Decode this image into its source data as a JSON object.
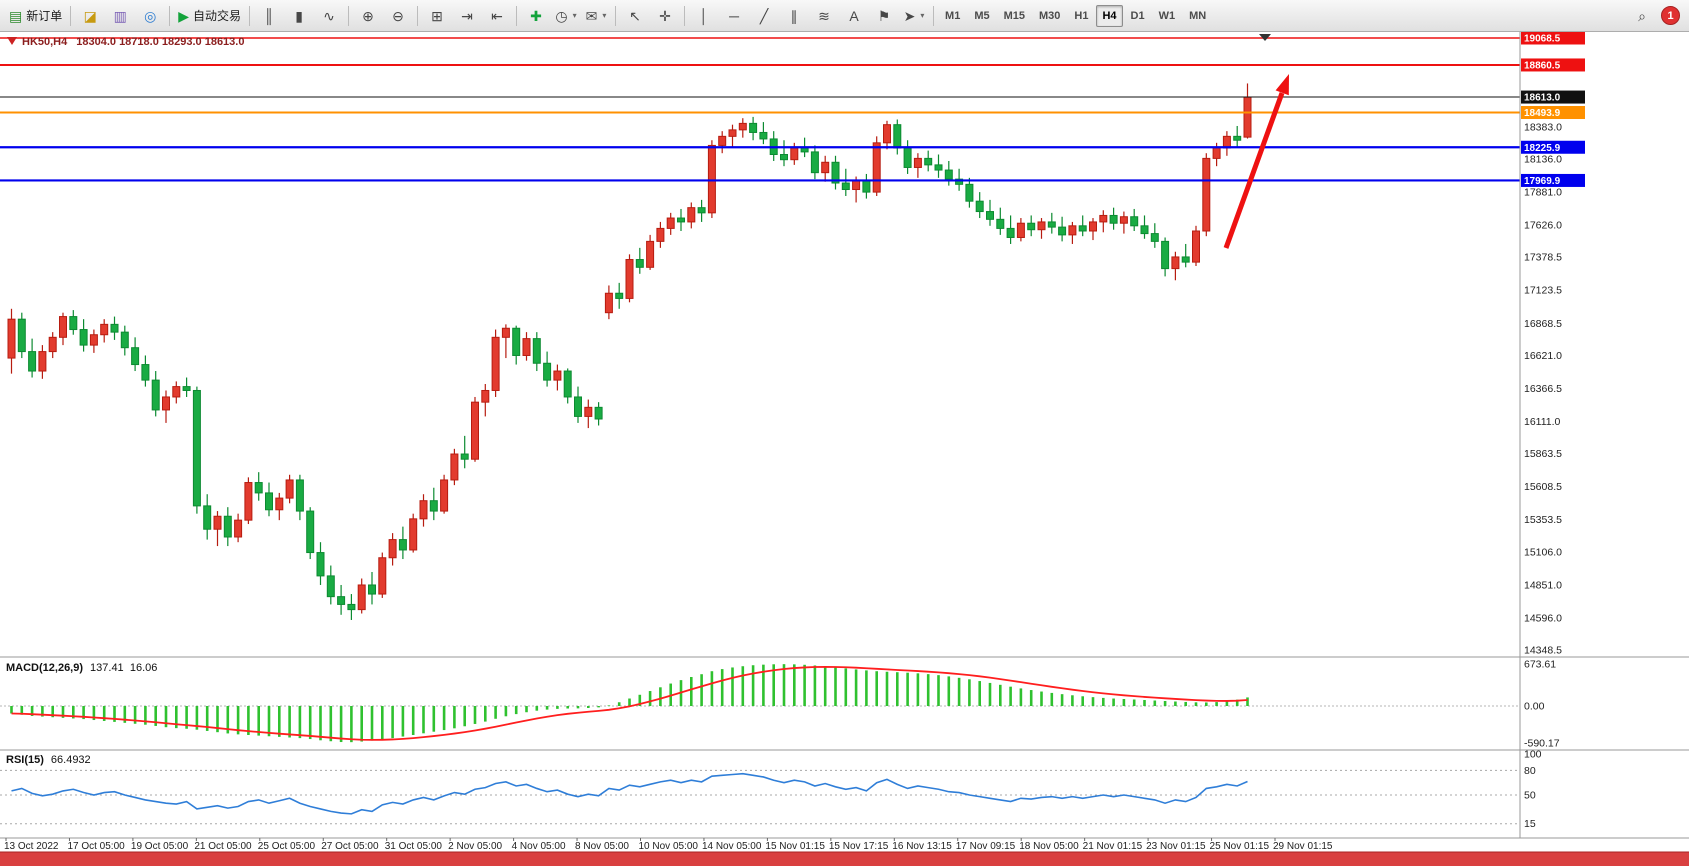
{
  "toolbar": {
    "items": [
      {
        "type": "button",
        "name": "new-order-button",
        "glyph": "▤",
        "glyph_color": "#2e8b2e",
        "label": "新订单"
      },
      {
        "type": "sep"
      },
      {
        "type": "button",
        "name": "new-chart-button",
        "glyph": "◪",
        "glyph_color": "#c79a10"
      },
      {
        "type": "button",
        "name": "profiles-button",
        "glyph": "▥",
        "glyph_color": "#7a5fb5"
      },
      {
        "type": "button",
        "name": "navigator-button",
        "glyph": "◎",
        "glyph_color": "#2e7dd1"
      },
      {
        "type": "sep"
      },
      {
        "type": "button",
        "name": "auto-trading-button",
        "glyph": "▶",
        "glyph_color": "#13a33b",
        "label": "自动交易"
      },
      {
        "type": "sep"
      },
      {
        "type": "button",
        "name": "bar-chart-button",
        "glyph": "║"
      },
      {
        "type": "button",
        "name": "candlestick-chart-button",
        "glyph": "▮"
      },
      {
        "type": "button",
        "name": "line-chart-button",
        "glyph": "∿"
      },
      {
        "type": "sep"
      },
      {
        "type": "button",
        "name": "zoom-in-button",
        "glyph": "⊕"
      },
      {
        "type": "button",
        "name": "zoom-out-button",
        "glyph": "⊖"
      },
      {
        "type": "sep"
      },
      {
        "type": "button",
        "name": "tile-windows-button",
        "glyph": "⊞"
      },
      {
        "type": "button",
        "name": "auto-scroll-button",
        "glyph": "⇥"
      },
      {
        "type": "button",
        "name": "chart-shift-button",
        "glyph": "⇤"
      },
      {
        "type": "sep"
      },
      {
        "type": "button",
        "name": "indicators-button",
        "glyph": "✚",
        "glyph_color": "#13a33b"
      },
      {
        "type": "button",
        "name": "periods-button",
        "glyph": "◷",
        "caret": true
      },
      {
        "type": "button",
        "name": "templates-button",
        "glyph": "✉",
        "caret": true
      },
      {
        "type": "sep"
      },
      {
        "type": "button",
        "name": "cursor-button",
        "glyph": "↖"
      },
      {
        "type": "button",
        "name": "crosshair-button",
        "glyph": "✛"
      },
      {
        "type": "sep"
      },
      {
        "type": "button",
        "name": "vertical-line-button",
        "glyph": "│"
      },
      {
        "type": "button",
        "name": "horizontal-line-button",
        "glyph": "─"
      },
      {
        "type": "button",
        "name": "trendline-button",
        "glyph": "╱"
      },
      {
        "type": "button",
        "name": "equidistant-channel-button",
        "glyph": "∥"
      },
      {
        "type": "button",
        "name": "fibonacci-button",
        "glyph": "≋"
      },
      {
        "type": "button",
        "name": "text-button",
        "glyph": "A"
      },
      {
        "type": "button",
        "name": "text-label-button",
        "glyph": "⚑"
      },
      {
        "type": "button",
        "name": "arrows-button",
        "glyph": "➤",
        "caret": true
      },
      {
        "type": "sep"
      }
    ],
    "timeframes": [
      "M1",
      "M5",
      "M15",
      "M30",
      "H1",
      "H4",
      "D1",
      "W1",
      "MN"
    ],
    "active_timeframe": "H4",
    "right_items": [
      {
        "type": "button",
        "name": "search-button",
        "glyph": "⌕"
      }
    ],
    "notification_count": "1"
  },
  "chart": {
    "symbol": "HK50,H4",
    "ohlc_text": "18304.0 18718.0 18293.0 18613.0",
    "macd_name": "MACD(12,26,9)",
    "macd_value_main": "137.41",
    "macd_value_signal": "16.06",
    "rsi_name": "RSI(15)",
    "rsi_value": "66.4932",
    "macd_axis": [
      "673.61",
      "0.00",
      "-590.17"
    ],
    "rsi_axis": [
      "100",
      "80",
      "50",
      "15"
    ],
    "price_levels": [
      {
        "price": 19068.5,
        "label": "19068.5",
        "color": "#ee1111",
        "width": 1.4,
        "kind": "resistance"
      },
      {
        "price": 18860.5,
        "label": "18860.5",
        "color": "#ee1111",
        "width": 2,
        "kind": "resistance"
      },
      {
        "price": 18613.0,
        "label": "18613.0",
        "color": "#111111",
        "width": 1,
        "kind": "current-price"
      },
      {
        "price": 18493.9,
        "label": "18493.9",
        "color": "#ff9100",
        "width": 2,
        "kind": "level"
      },
      {
        "price": 18225.9,
        "label": "18225.9",
        "color": "#0000ee",
        "width": 2.2,
        "kind": "support"
      },
      {
        "price": 17969.9,
        "label": "17969.9",
        "color": "#0000ee",
        "width": 2.2,
        "kind": "support"
      }
    ],
    "price_ticks": [
      "18383.0",
      "18136.0",
      "17881.0",
      "17626.0",
      "17378.5",
      "17123.5",
      "16868.5",
      "16621.0",
      "16366.5",
      "16111.0",
      "15863.5",
      "15608.5",
      "15353.5",
      "15106.0",
      "14851.0",
      "14596.0",
      "14348.5"
    ],
    "time_labels": [
      "13 Oct 2022",
      "17 Oct 05:00",
      "19 Oct 05:00",
      "21 Oct 05:00",
      "25 Oct 05:00",
      "27 Oct 05:00",
      "31 Oct 05:00",
      "2 Nov 05:00",
      "4 Nov 05:00",
      "8 Nov 05:00",
      "10 Nov 05:00",
      "14 Nov 05:00",
      "15 Nov 01:15",
      "15 Nov 17:15",
      "16 Nov 13:15",
      "17 Nov 09:15",
      "18 Nov 05:00",
      "21 Nov 01:15",
      "23 Nov 01:15",
      "25 Nov 01:15",
      "29 Nov 01:15"
    ]
  },
  "chart_data": {
    "type": "candlestick",
    "symbol": "HK50",
    "timeframe": "H4",
    "title": "HK50,H4 18304.0 18718.0 18293.0 18613.0",
    "price_range": [
      14348.5,
      19068.5
    ],
    "candles": [
      [
        16600,
        16980,
        16480,
        16900
      ],
      [
        16900,
        16950,
        16600,
        16650
      ],
      [
        16650,
        16750,
        16450,
        16500
      ],
      [
        16500,
        16700,
        16440,
        16650
      ],
      [
        16650,
        16800,
        16600,
        16760
      ],
      [
        16760,
        16950,
        16700,
        16920
      ],
      [
        16920,
        16970,
        16780,
        16820
      ],
      [
        16820,
        16900,
        16650,
        16700
      ],
      [
        16700,
        16820,
        16640,
        16780
      ],
      [
        16780,
        16900,
        16720,
        16860
      ],
      [
        16860,
        16920,
        16740,
        16800
      ],
      [
        16800,
        16850,
        16620,
        16680
      ],
      [
        16680,
        16760,
        16500,
        16550
      ],
      [
        16550,
        16620,
        16380,
        16430
      ],
      [
        16430,
        16500,
        16150,
        16200
      ],
      [
        16200,
        16350,
        16100,
        16300
      ],
      [
        16300,
        16420,
        16250,
        16380
      ],
      [
        16380,
        16450,
        16300,
        16350
      ],
      [
        16350,
        16380,
        15400,
        15460
      ],
      [
        15460,
        15550,
        15200,
        15280
      ],
      [
        15280,
        15420,
        15150,
        15380
      ],
      [
        15380,
        15450,
        15150,
        15220
      ],
      [
        15220,
        15400,
        15180,
        15350
      ],
      [
        15350,
        15680,
        15320,
        15640
      ],
      [
        15640,
        15720,
        15500,
        15560
      ],
      [
        15560,
        15640,
        15380,
        15430
      ],
      [
        15430,
        15560,
        15350,
        15520
      ],
      [
        15520,
        15700,
        15480,
        15660
      ],
      [
        15660,
        15700,
        15350,
        15420
      ],
      [
        15420,
        15450,
        15050,
        15100
      ],
      [
        15100,
        15180,
        14850,
        14920
      ],
      [
        14920,
        15000,
        14700,
        14760
      ],
      [
        14760,
        14850,
        14620,
        14700
      ],
      [
        14700,
        14780,
        14580,
        14660
      ],
      [
        14660,
        14900,
        14630,
        14850
      ],
      [
        14850,
        14950,
        14700,
        14780
      ],
      [
        14780,
        15100,
        14750,
        15060
      ],
      [
        15060,
        15250,
        15000,
        15200
      ],
      [
        15200,
        15300,
        15050,
        15120
      ],
      [
        15120,
        15400,
        15100,
        15360
      ],
      [
        15360,
        15550,
        15300,
        15500
      ],
      [
        15500,
        15600,
        15350,
        15420
      ],
      [
        15420,
        15700,
        15400,
        15660
      ],
      [
        15660,
        15900,
        15620,
        15860
      ],
      [
        15860,
        16000,
        15750,
        15820
      ],
      [
        15820,
        16300,
        15800,
        16260
      ],
      [
        16260,
        16400,
        16150,
        16350
      ],
      [
        16350,
        16820,
        16300,
        16760
      ],
      [
        16760,
        16860,
        16600,
        16830
      ],
      [
        16830,
        16850,
        16550,
        16620
      ],
      [
        16620,
        16800,
        16580,
        16750
      ],
      [
        16750,
        16800,
        16500,
        16560
      ],
      [
        16560,
        16650,
        16380,
        16430
      ],
      [
        16430,
        16550,
        16350,
        16500
      ],
      [
        16500,
        16520,
        16250,
        16300
      ],
      [
        16300,
        16380,
        16100,
        16150
      ],
      [
        16150,
        16280,
        16060,
        16220
      ],
      [
        16220,
        16260,
        16080,
        16130
      ],
      [
        16950,
        17160,
        16900,
        17100
      ],
      [
        17100,
        17180,
        16980,
        17060
      ],
      [
        17060,
        17400,
        17030,
        17360
      ],
      [
        17360,
        17450,
        17250,
        17300
      ],
      [
        17300,
        17550,
        17280,
        17500
      ],
      [
        17500,
        17650,
        17450,
        17600
      ],
      [
        17600,
        17720,
        17550,
        17680
      ],
      [
        17680,
        17750,
        17580,
        17650
      ],
      [
        17650,
        17800,
        17600,
        17760
      ],
      [
        17760,
        17820,
        17650,
        17720
      ],
      [
        17720,
        18280,
        17680,
        18240
      ],
      [
        18240,
        18350,
        18180,
        18310
      ],
      [
        18310,
        18400,
        18230,
        18360
      ],
      [
        18360,
        18450,
        18300,
        18410
      ],
      [
        18410,
        18460,
        18280,
        18340
      ],
      [
        18340,
        18420,
        18250,
        18290
      ],
      [
        18290,
        18350,
        18120,
        18170
      ],
      [
        18170,
        18280,
        18080,
        18130
      ],
      [
        18130,
        18260,
        18090,
        18220
      ],
      [
        18220,
        18300,
        18150,
        18190
      ],
      [
        18190,
        18240,
        17980,
        18030
      ],
      [
        18030,
        18160,
        17960,
        18110
      ],
      [
        18110,
        18160,
        17900,
        17950
      ],
      [
        17950,
        18060,
        17850,
        17900
      ],
      [
        17900,
        18000,
        17800,
        17970
      ],
      [
        17970,
        18020,
        17830,
        17880
      ],
      [
        17880,
        18310,
        17850,
        18260
      ],
      [
        18260,
        18430,
        18210,
        18400
      ],
      [
        18400,
        18440,
        18170,
        18220
      ],
      [
        18220,
        18280,
        18020,
        18070
      ],
      [
        18070,
        18180,
        17990,
        18140
      ],
      [
        18140,
        18200,
        18040,
        18090
      ],
      [
        18090,
        18170,
        17990,
        18050
      ],
      [
        18050,
        18120,
        17930,
        17980
      ],
      [
        17980,
        18060,
        17890,
        17940
      ],
      [
        17940,
        17990,
        17760,
        17810
      ],
      [
        17810,
        17880,
        17680,
        17730
      ],
      [
        17730,
        17820,
        17620,
        17670
      ],
      [
        17670,
        17760,
        17550,
        17600
      ],
      [
        17600,
        17700,
        17480,
        17530
      ],
      [
        17530,
        17680,
        17500,
        17640
      ],
      [
        17640,
        17700,
        17540,
        17590
      ],
      [
        17590,
        17680,
        17520,
        17650
      ],
      [
        17650,
        17720,
        17560,
        17610
      ],
      [
        17610,
        17690,
        17500,
        17550
      ],
      [
        17550,
        17650,
        17480,
        17620
      ],
      [
        17620,
        17700,
        17540,
        17580
      ],
      [
        17580,
        17680,
        17510,
        17650
      ],
      [
        17650,
        17740,
        17570,
        17700
      ],
      [
        17700,
        17760,
        17590,
        17640
      ],
      [
        17640,
        17730,
        17560,
        17690
      ],
      [
        17690,
        17750,
        17580,
        17620
      ],
      [
        17620,
        17700,
        17520,
        17560
      ],
      [
        17560,
        17640,
        17450,
        17500
      ],
      [
        17500,
        17530,
        17230,
        17290
      ],
      [
        17290,
        17420,
        17200,
        17380
      ],
      [
        17380,
        17480,
        17300,
        17340
      ],
      [
        17340,
        17620,
        17310,
        17580
      ],
      [
        17580,
        18180,
        17540,
        18140
      ],
      [
        18140,
        18260,
        18080,
        18220
      ],
      [
        18220,
        18350,
        18160,
        18310
      ],
      [
        18310,
        18390,
        18230,
        18280
      ],
      [
        18304,
        18718,
        18293,
        18613
      ]
    ],
    "macd_hist": [
      -120,
      -140,
      -160,
      -170,
      -180,
      -190,
      -200,
      -210,
      -225,
      -240,
      -255,
      -270,
      -285,
      -300,
      -320,
      -340,
      -355,
      -365,
      -380,
      -400,
      -420,
      -440,
      -455,
      -465,
      -475,
      -485,
      -495,
      -505,
      -515,
      -530,
      -550,
      -565,
      -578,
      -580,
      -570,
      -555,
      -535,
      -515,
      -490,
      -465,
      -438,
      -412,
      -386,
      -358,
      -325,
      -288,
      -250,
      -205,
      -165,
      -130,
      -100,
      -75,
      -58,
      -46,
      -40,
      -38,
      -32,
      -22,
      10,
      60,
      120,
      180,
      240,
      300,
      360,
      415,
      465,
      510,
      558,
      592,
      618,
      638,
      654,
      663,
      669,
      671,
      668,
      661,
      650,
      637,
      621,
      604,
      587,
      571,
      558,
      549,
      542,
      534,
      524,
      511,
      495,
      475,
      452,
      428,
      400,
      370,
      340,
      310,
      282,
      256,
      232,
      210,
      190,
      172,
      156,
      142,
      130,
      120,
      112,
      104,
      96,
      88,
      80,
      72,
      65,
      59,
      57,
      63,
      78,
      102,
      137.41
    ],
    "rsi": [
      55,
      58,
      52,
      49,
      51,
      55,
      57,
      53,
      50,
      53,
      54,
      50,
      47,
      44,
      42,
      40,
      39,
      42,
      33,
      35,
      37,
      34,
      36,
      42,
      44,
      40,
      43,
      46,
      40,
      36,
      33,
      30,
      28,
      27,
      32,
      30,
      38,
      41,
      39,
      44,
      47,
      44,
      49,
      53,
      51,
      57,
      59,
      64,
      66,
      61,
      63,
      58,
      54,
      56,
      51,
      48,
      51,
      49,
      58,
      56,
      62,
      60,
      63,
      66,
      68,
      65,
      68,
      66,
      73,
      74,
      75,
      76,
      74,
      72,
      68,
      65,
      68,
      66,
      61,
      64,
      60,
      57,
      59,
      55,
      65,
      69,
      63,
      58,
      61,
      59,
      57,
      54,
      53,
      50,
      48,
      46,
      44,
      42,
      46,
      45,
      47,
      48,
      46,
      48,
      46,
      48,
      50,
      48,
      50,
      48,
      46,
      44,
      40,
      44,
      42,
      47,
      58,
      60,
      63,
      61,
      66.49
    ],
    "rsi_levels": [
      80,
      50,
      15
    ],
    "legend_position": "none",
    "grid": false
  },
  "colors": {
    "bull": "#e23b2e",
    "bull_border": "#b71c10",
    "bear": "#19ab43",
    "bear_border": "#0c8a31",
    "macd_hist": "#2fc12f",
    "macd_signal": "#ff1e1e",
    "rsi_line": "#2f7ed8",
    "axis_text": "#222222",
    "separator": "#9a9a9a",
    "arrow": "#ee1111",
    "bottom_bar": "#d94040",
    "title_text": "#8b1e1e"
  }
}
